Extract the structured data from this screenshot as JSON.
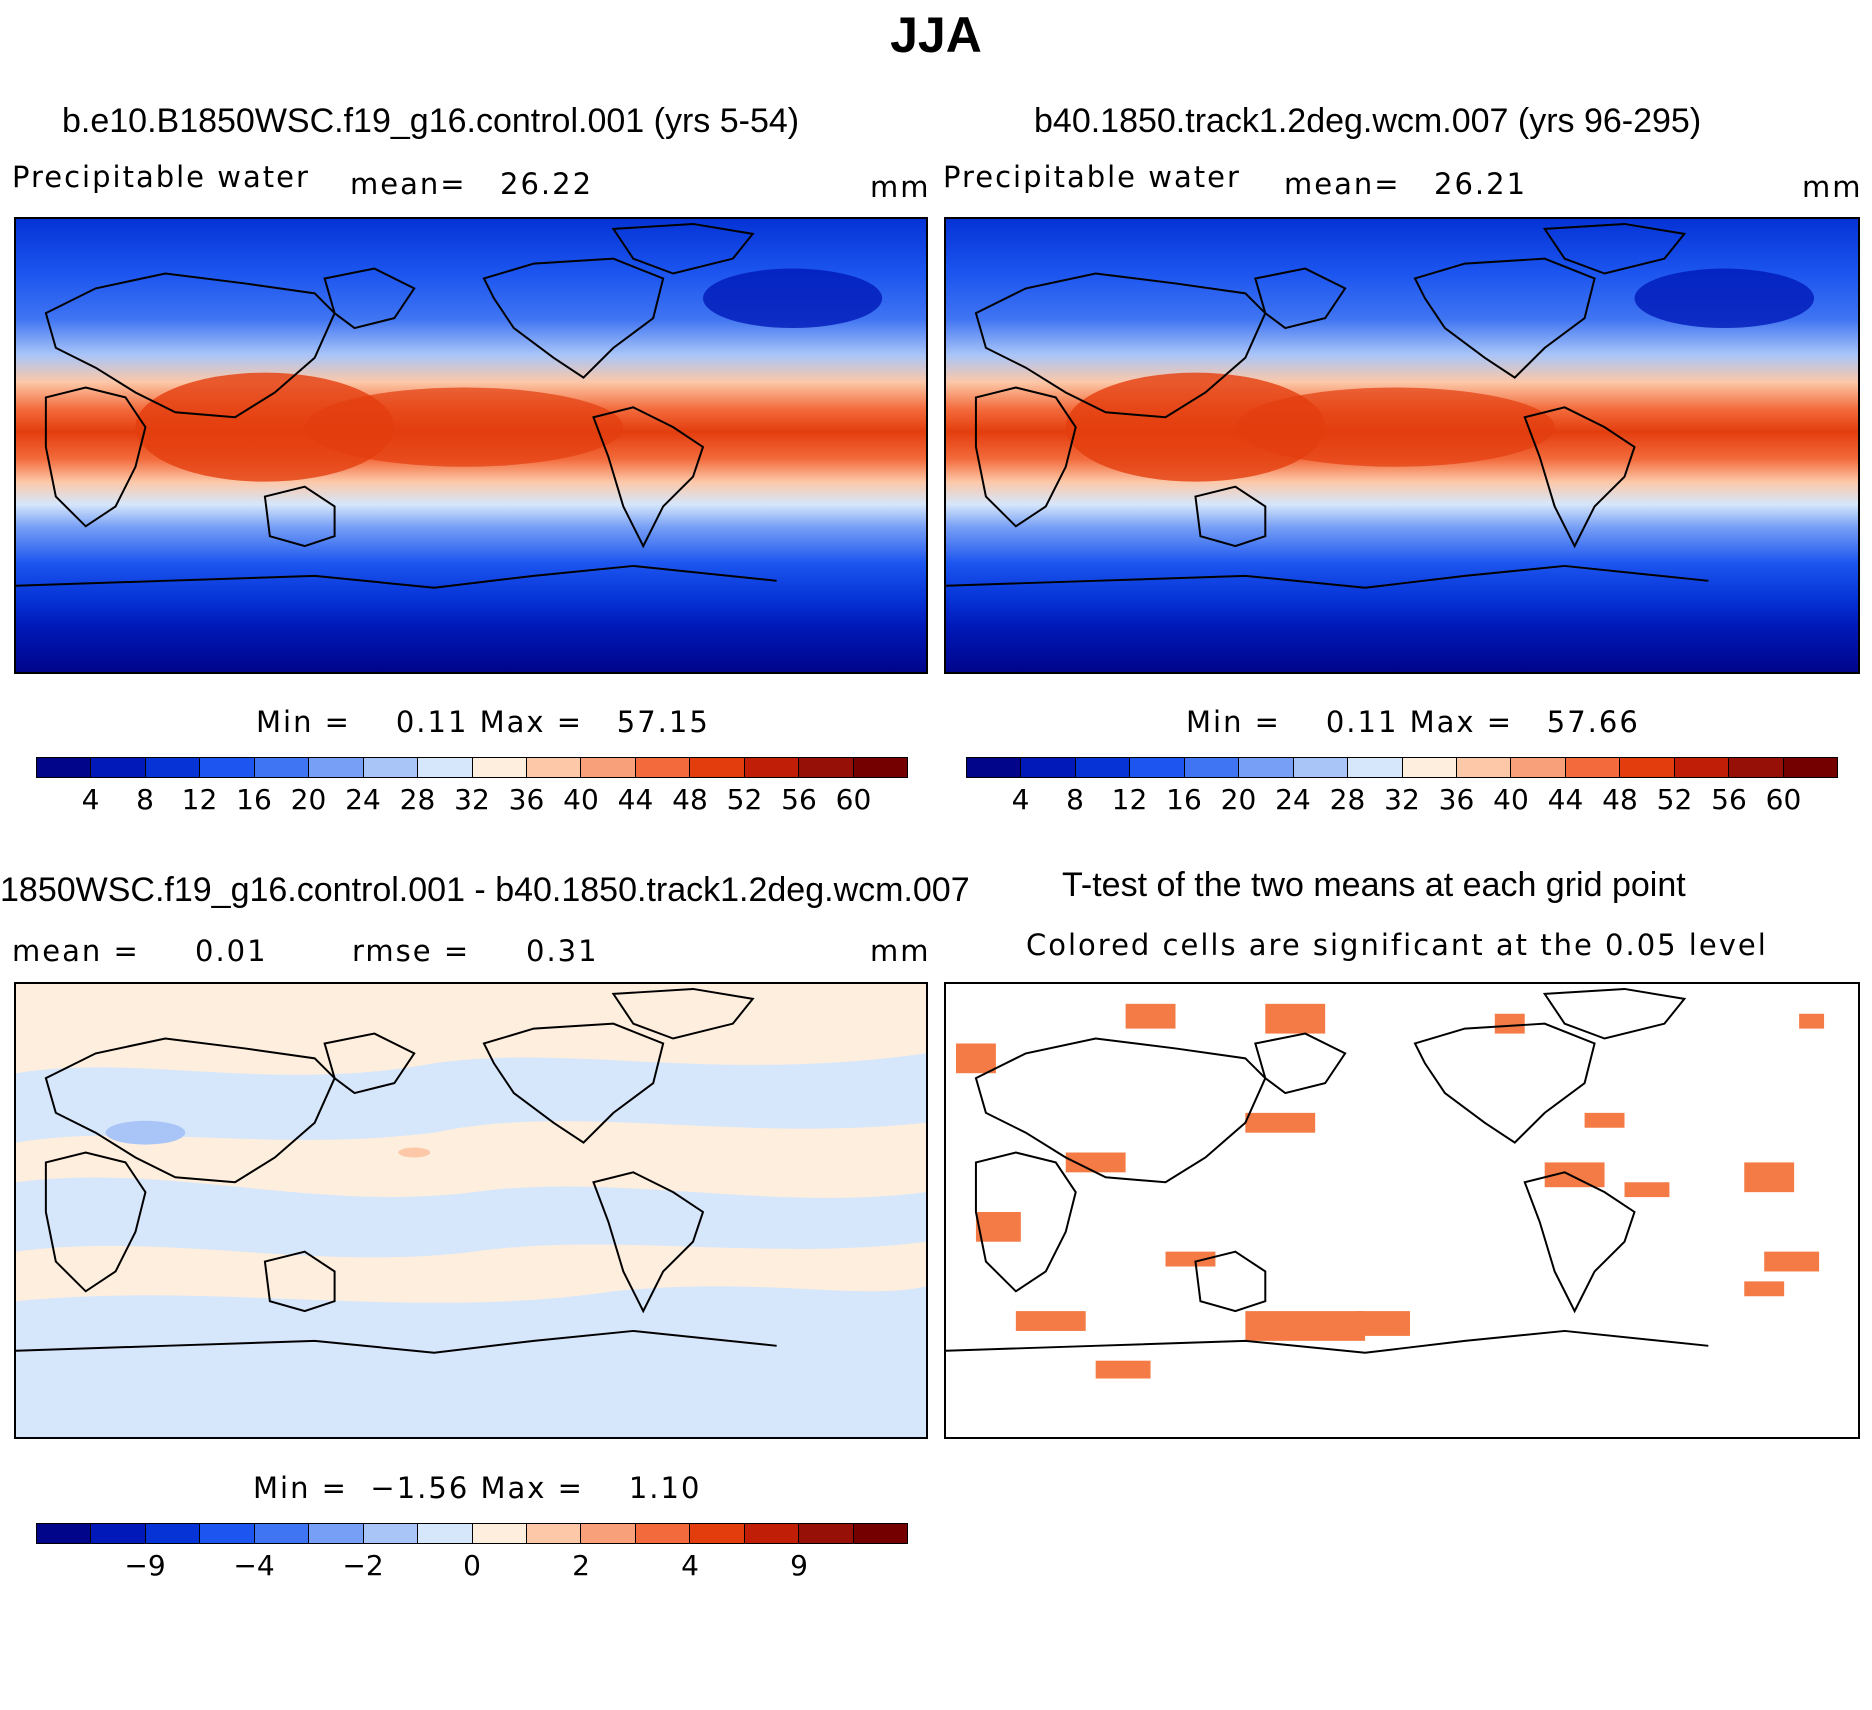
{
  "title": "JJA",
  "colors": {
    "abs_scale": [
      "#00058a",
      "#0019b8",
      "#0533d6",
      "#1c55ef",
      "#3f74f2",
      "#779ff5",
      "#a9c5f8",
      "#d6e6fb",
      "#feeedd",
      "#fcc8a8",
      "#f8a07a",
      "#f36b3c",
      "#e33d0e",
      "#c01e07",
      "#971007",
      "#750000"
    ],
    "diff_scale": [
      "#00058a",
      "#0019b8",
      "#0533d6",
      "#1c55ef",
      "#3f74f2",
      "#779ff5",
      "#a9c5f8",
      "#d6e6fb",
      "#feeedd",
      "#fcc8a8",
      "#f8a07a",
      "#f36b3c",
      "#e33d0e",
      "#c01e07",
      "#971007",
      "#750000"
    ],
    "significant": "#f47b45"
  },
  "panels": {
    "p1": {
      "title": "b.e10.B1850WSC.f19_g16.control.001 (yrs 5-54)",
      "variable": "Precipitable water",
      "mean_label": "mean=",
      "mean_value": "26.22",
      "units": "mm",
      "stats": "Min =    0.11 Max =   57.15",
      "ticks": [
        "4",
        "8",
        "12",
        "16",
        "20",
        "24",
        "28",
        "32",
        "36",
        "40",
        "44",
        "48",
        "52",
        "56",
        "60"
      ]
    },
    "p2": {
      "title": "b40.1850.track1.2deg.wcm.007 (yrs 96-295)",
      "variable": "Precipitable water",
      "mean_label": "mean=",
      "mean_value": "26.21",
      "units": "mm",
      "stats": "Min =    0.11 Max =   57.66",
      "ticks": [
        "4",
        "8",
        "12",
        "16",
        "20",
        "24",
        "28",
        "32",
        "36",
        "40",
        "44",
        "48",
        "52",
        "56",
        "60"
      ]
    },
    "p3": {
      "title": "1850WSC.f19_g16.control.001 - b40.1850.track1.2deg.wcm.007",
      "mean_label": "mean =",
      "mean_value": "0.01",
      "rmse_label": "rmse =",
      "rmse_value": "0.31",
      "units": "mm",
      "stats": "Min =  −1.56 Max =    1.10",
      "ticks": [
        "−9",
        "−4",
        "−2",
        "0",
        "2",
        "4",
        "9"
      ]
    },
    "p4": {
      "title": "T-test of the two means at each grid point",
      "subtitle": "Colored cells are significant at the 0.05 level"
    }
  },
  "chart_data": [
    {
      "type": "heatmap",
      "title": "b.e10.B1850WSC.f19_g16.control.001 (yrs 5-54)",
      "variable": "Precipitable water",
      "units": "mm",
      "mean": 26.22,
      "min": 0.11,
      "max": 57.15,
      "contour_levels": [
        4,
        8,
        12,
        16,
        20,
        24,
        28,
        32,
        36,
        40,
        44,
        48,
        52,
        56,
        60
      ]
    },
    {
      "type": "heatmap",
      "title": "b40.1850.track1.2deg.wcm.007 (yrs 96-295)",
      "variable": "Precipitable water",
      "units": "mm",
      "mean": 26.21,
      "min": 0.11,
      "max": 57.66,
      "contour_levels": [
        4,
        8,
        12,
        16,
        20,
        24,
        28,
        32,
        36,
        40,
        44,
        48,
        52,
        56,
        60
      ]
    },
    {
      "type": "heatmap",
      "title": "1850WSC.f19_g16.control.001 - b40.1850.track1.2deg.wcm.007",
      "units": "mm",
      "mean": 0.01,
      "rmse": 0.31,
      "min": -1.56,
      "max": 1.1,
      "contour_levels": [
        -9,
        -4,
        -2,
        0,
        2,
        4,
        9
      ]
    },
    {
      "type": "heatmap",
      "title": "T-test of the two means at each grid point",
      "subtitle": "Colored cells are significant at the 0.05 level",
      "significance_level": 0.05
    }
  ]
}
